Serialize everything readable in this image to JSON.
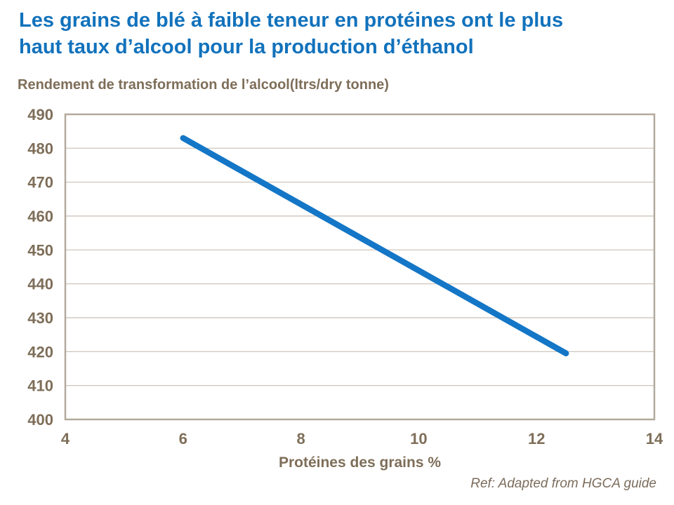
{
  "header": {
    "title_line1": "Les grains de blé à faible teneur en protéines ont le plus",
    "title_line2": "haut taux d’alcool pour la production d’éthanol",
    "title_color": "#1272BC"
  },
  "chart_data": {
    "type": "line",
    "title": "Rendement de transformation de l’alcool(ltrs/dry tonne)",
    "xlabel": "Protéines des grains %",
    "ylabel": "Rendement de transformation de l’alcool (ltrs/dry tonne)",
    "xlim": [
      4,
      14
    ],
    "ylim": [
      400,
      490
    ],
    "x_ticks": [
      4,
      6,
      8,
      10,
      12,
      14
    ],
    "y_ticks": [
      400,
      410,
      420,
      430,
      440,
      450,
      460,
      470,
      480,
      490
    ],
    "grid": "horizontal-only",
    "legend_position": "none",
    "axis_text_color": "#7E6E59",
    "plot_border_color": "#B3A99D",
    "gridline_color": "#C9BFB3",
    "series": [
      {
        "name": "Rendement de transformation de l’alcool",
        "color": "#1476C6",
        "stroke_width": 8.5,
        "x": [
          6,
          12.5
        ],
        "y": [
          483,
          419.5
        ]
      }
    ]
  },
  "footer": {
    "ref": "Ref: Adapted from HGCA guide"
  }
}
